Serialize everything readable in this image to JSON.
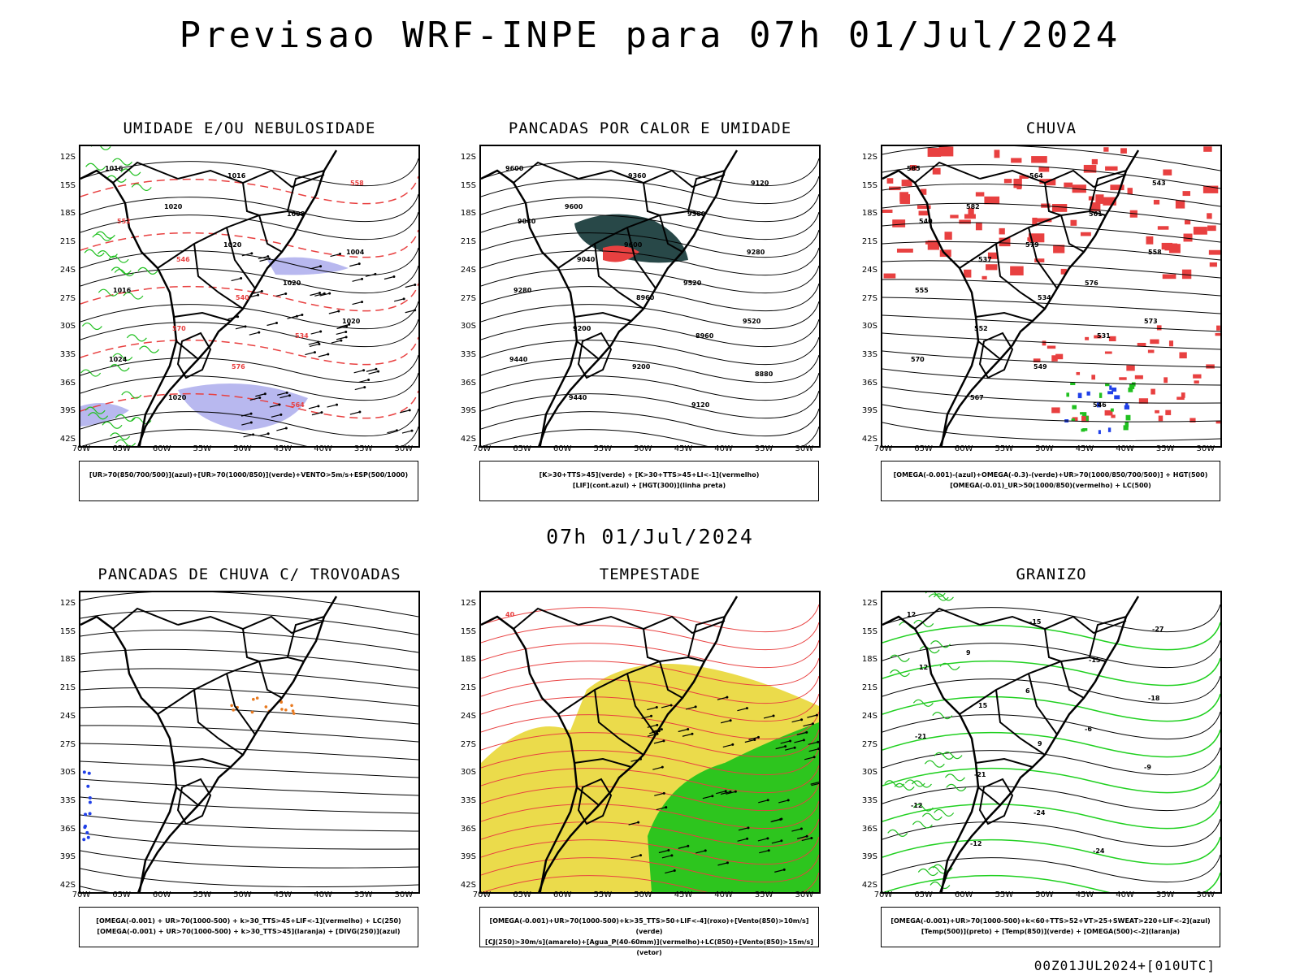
{
  "main_title": "Previsao WRF-INPE  para 07h 01/Jul/2024",
  "mid_title": "07h 01/Jul/2024",
  "footer": "00Z01JUL2024+[010UTC]",
  "axes": {
    "lat_labels": [
      "12S",
      "15S",
      "18S",
      "21S",
      "24S",
      "27S",
      "30S",
      "33S",
      "36S",
      "39S",
      "42S"
    ],
    "lon_labels": [
      "70W",
      "65W",
      "60W",
      "55W",
      "50W",
      "45W",
      "40W",
      "35W",
      "30W"
    ]
  },
  "panels": [
    {
      "title": "UMIDADE E/OU NEBULOSIDADE",
      "legend_lines": [
        "[UR>70(850/700/500)](azul)+[UR>70(1000/850)](verde)+VENTO>5m/s+ESP(500/1000)"
      ],
      "labels": [
        "1016",
        "1020",
        "1020",
        "1020",
        "1020",
        "1024",
        "1020",
        "1016",
        "1008",
        "1004",
        "1016",
        "570",
        "576",
        "564",
        "558",
        "552",
        "546",
        "540",
        "534"
      ]
    },
    {
      "title": "PANCADAS POR CALOR E UMIDADE",
      "legend_lines": [
        "[K>30+TTS>45](verde) + [K>30+TTS>45+LI<-1](vermelho)",
        "[LIF](cont.azul) + [HGT(300)](linha preta)"
      ],
      "labels": [
        "9600",
        "9600",
        "9600",
        "9520",
        "9520",
        "9440",
        "9440",
        "9360",
        "9360",
        "9280",
        "9280",
        "9200",
        "9200",
        "9120",
        "9120",
        "9040",
        "9040",
        "8960",
        "8960",
        "8880"
      ]
    },
    {
      "title": "CHUVA",
      "legend_lines": [
        "[OMEGA(-0.001)-(azul)+OMEGA(-0.3)-(verde)+UR>70(1000/850/700/500)] + HGT(500)",
        "[OMEGA(-0.01)_UR>50(1000/850)(vermelho) + LC(500)"
      ],
      "labels": [
        "585",
        "582",
        "579",
        "576",
        "573",
        "570",
        "567",
        "564",
        "561",
        "558",
        "555",
        "552",
        "549",
        "546",
        "543",
        "540",
        "537",
        "534",
        "531"
      ]
    },
    {
      "title": "PANCADAS DE CHUVA C/ TROVOADAS",
      "legend_lines": [
        "[OMEGA(-0.001) + UR>70(1000-500) + k>30_TTS>45+LIF<-1](vermelho) + LC(250)",
        "[OMEGA(-0.001) + UR>70(1000-500) + k>30_TTS>45](laranja) + [DIVG(250)](azul)"
      ],
      "labels": []
    },
    {
      "title": "TEMPESTADE",
      "legend_lines": [
        "[OMEGA(-0.001)+UR>70(1000-500)+k>35_TTS>50+LIF<-4](roxo)+[Vento(850)>10m/s](verde)",
        "[CJ(250)>30m/s](amarelo)+[Agua_P(40-60mm)](vermelho)+LC(850)+[Vento(850)>15m/s](vetor)"
      ],
      "labels": [
        "40"
      ]
    },
    {
      "title": "GRANIZO",
      "legend_lines": [
        "[OMEGA(-0.001)+UR>70(1000-500)+k<60+TTS>52+VT>25+SWEAT>220+LIF<-2](azul)",
        "[Temp(500)](preto) + [Temp(850)](verde) + [OMEGA(500)<-2](laranja)"
      ],
      "labels": [
        "12",
        "9",
        "6",
        "-6",
        "-9",
        "-12",
        "-12",
        "-15",
        "-15",
        "-18",
        "-21",
        "-21",
        "-24",
        "-24",
        "-27",
        "12",
        "15",
        "9"
      ]
    }
  ]
}
